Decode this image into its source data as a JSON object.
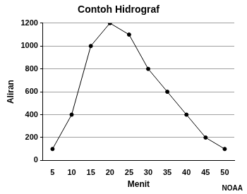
{
  "chart_data": {
    "type": "line",
    "title": "Contoh Hidrograf",
    "x_label": "Menit",
    "y_label": "Aliran",
    "annotation": "NOAA",
    "categories": [
      "5",
      "10",
      "15",
      "20",
      "25",
      "30",
      "35",
      "40",
      "45",
      "50"
    ],
    "values": [
      100,
      400,
      1000,
      1200,
      1100,
      800,
      600,
      400,
      200,
      100
    ],
    "color": "#000000",
    "marker": "circle",
    "line_style": "solid",
    "ylim": [
      0,
      1200
    ],
    "yticks": [
      0,
      200,
      400,
      600,
      800,
      1000,
      1200
    ],
    "grid": true
  }
}
